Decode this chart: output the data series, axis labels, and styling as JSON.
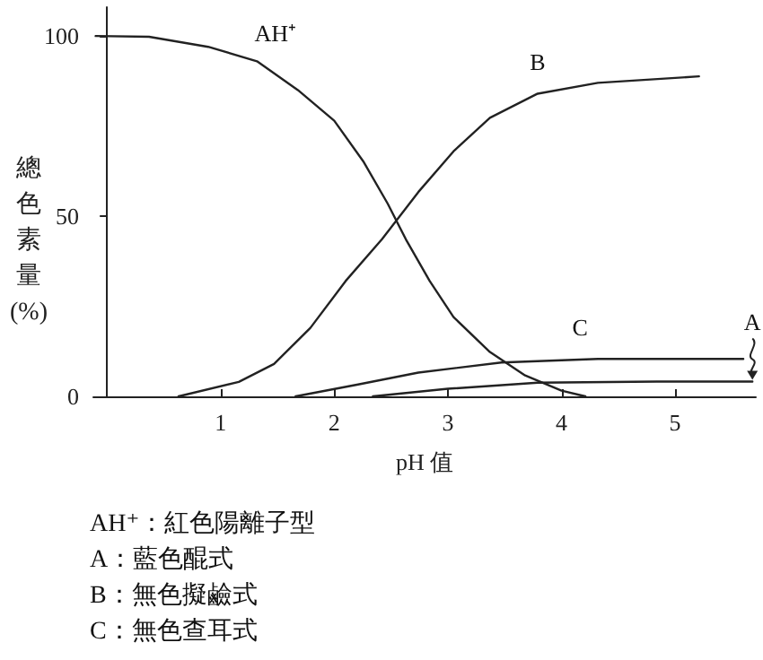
{
  "chart_data": {
    "type": "line",
    "xlabel": "pH 值",
    "ylabel": "總色素量(%)",
    "xlim": [
      -0.12,
      5.71
    ],
    "xticks": [
      1,
      2,
      3,
      4,
      5
    ],
    "ylim": [
      0,
      108
    ],
    "yticks": [
      0,
      50,
      100
    ],
    "grid": false,
    "legend": false,
    "marker": "none",
    "line_style": "solid",
    "series": [
      {
        "name": "AH⁺",
        "color": "#222222",
        "x": [
          -0.1,
          0.37,
          0.89,
          1.32,
          1.68,
          2.0,
          2.26,
          2.47,
          2.63,
          2.84,
          3.05,
          3.37,
          3.68,
          4.0,
          4.21
        ],
        "values": [
          100,
          99.8,
          97,
          93,
          85,
          76.5,
          65,
          53.5,
          43.6,
          32,
          22,
          12.3,
          5.8,
          1.6,
          0
        ]
      },
      {
        "name": "A",
        "color": "#222222",
        "x": [
          2.34,
          3.0,
          3.79,
          4.84,
          5.68
        ],
        "values": [
          0,
          2.1,
          3.8,
          4.1,
          4.1
        ]
      },
      {
        "name": "B",
        "color": "#222222",
        "x": [
          0.63,
          1.16,
          1.47,
          1.79,
          2.1,
          2.42,
          2.74,
          3.05,
          3.37,
          3.79,
          4.32,
          5.21
        ],
        "values": [
          0,
          4,
          9,
          19,
          32,
          43.6,
          56.7,
          68,
          77.3,
          84,
          87,
          88.8
        ]
      },
      {
        "name": "C",
        "color": "#222222",
        "x": [
          1.66,
          2.21,
          2.74,
          3.47,
          4.32,
          5.6
        ],
        "values": [
          0,
          3.3,
          6.6,
          9.4,
          10.4,
          10.4
        ]
      }
    ],
    "annotations": [
      "AH⁺：紅色陽離子型",
      "A：藍色醌式",
      "B：無色擬鹼式",
      "C：無色查耳式"
    ]
  }
}
